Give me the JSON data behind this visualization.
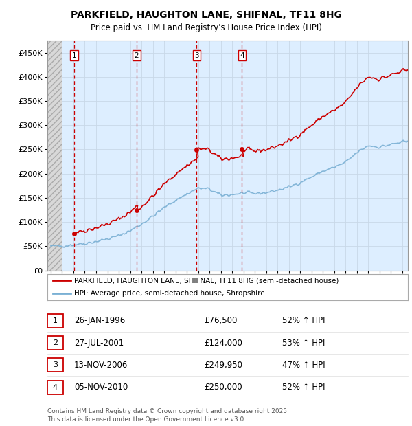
{
  "title": "PARKFIELD, HAUGHTON LANE, SHIFNAL, TF11 8HG",
  "subtitle": "Price paid vs. HM Land Registry's House Price Index (HPI)",
  "legend_line1": "PARKFIELD, HAUGHTON LANE, SHIFNAL, TF11 8HG (semi-detached house)",
  "legend_line2": "HPI: Average price, semi-detached house, Shropshire",
  "footer1": "Contains HM Land Registry data © Crown copyright and database right 2025.",
  "footer2": "This data is licensed under the Open Government Licence v3.0.",
  "transactions": [
    {
      "num": 1,
      "date": "26-JAN-1996",
      "price": "£76,500",
      "hpi": "52% ↑ HPI",
      "year": 1996.08
    },
    {
      "num": 2,
      "date": "27-JUL-2001",
      "price": "£124,000",
      "hpi": "53% ↑ HPI",
      "year": 2001.57
    },
    {
      "num": 3,
      "date": "13-NOV-2006",
      "price": "£249,950",
      "hpi": "47% ↑ HPI",
      "year": 2006.87
    },
    {
      "num": 4,
      "date": "05-NOV-2010",
      "price": "£250,000",
      "hpi": "52% ↑ HPI",
      "year": 2010.87
    }
  ],
  "hpi_color": "#7ab0d4",
  "price_color": "#cc0000",
  "dashed_color": "#cc0000",
  "background_plot": "#ddeeff",
  "grid_color": "#c8d8e8",
  "ylim": [
    0,
    475000
  ],
  "yticks": [
    0,
    50000,
    100000,
    150000,
    200000,
    250000,
    300000,
    350000,
    400000,
    450000
  ],
  "xlim_start": 1993.7,
  "xlim_end": 2025.5,
  "xticks": [
    1994,
    1995,
    1996,
    1997,
    1998,
    1999,
    2000,
    2001,
    2002,
    2003,
    2004,
    2005,
    2006,
    2007,
    2008,
    2009,
    2010,
    2011,
    2012,
    2013,
    2014,
    2015,
    2016,
    2017,
    2018,
    2019,
    2020,
    2021,
    2022,
    2023,
    2024,
    2025
  ]
}
